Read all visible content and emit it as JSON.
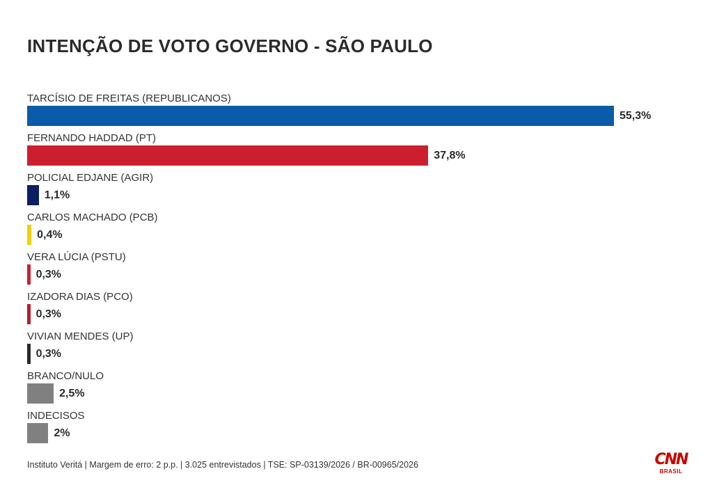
{
  "title": "INTENÇÃO DE VOTO GOVERNO - SÃO PAULO",
  "chart_data": {
    "type": "bar",
    "orientation": "horizontal",
    "title": "INTENÇÃO DE VOTO GOVERNO - SÃO PAULO",
    "xlim": [
      0,
      55.3
    ],
    "grid": false,
    "categories": [
      "TARCÍSIO DE FREITAS (REPUBLICANOS)",
      "FERNANDO HADDAD (PT)",
      "POLICIAL EDJANE (AGIR)",
      "CARLOS MACHADO (PCB)",
      "VERA LÚCIA (PSTU)",
      "IZADORA DIAS (PCO)",
      "VIVIAN MENDES (UP)",
      "BRANCO/NULO",
      "INDECISOS"
    ],
    "values": [
      55.3,
      37.8,
      1.1,
      0.4,
      0.3,
      0.3,
      0.3,
      2.5,
      2
    ],
    "value_labels": [
      "55,3%",
      "37,8%",
      "1,1%",
      "0,4%",
      "0,3%",
      "0,3%",
      "0,3%",
      "2,5%",
      "2%"
    ],
    "colors": [
      "#0a5ba8",
      "#cc1f2e",
      "#0b1f63",
      "#f5cf00",
      "#cc1f2e",
      "#b81c2c",
      "#2a2a2a",
      "#808080",
      "#808080"
    ]
  },
  "footer": "Instituto Veritá | Margem de erro: 2 p.p. | 3.025 entrevistados | TSE: SP-03139/2026 / BR-00965/2026",
  "logo": {
    "mark": "CNN",
    "sub": "BRASIL"
  }
}
